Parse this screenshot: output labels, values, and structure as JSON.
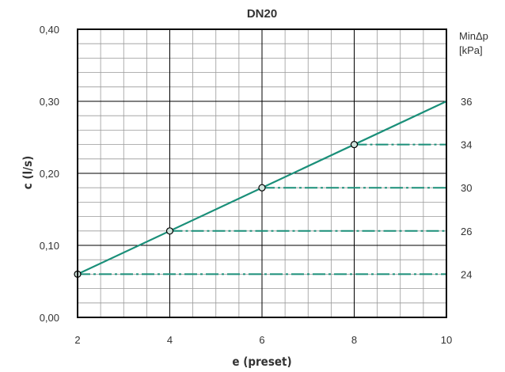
{
  "chart_data": {
    "type": "line",
    "title": "DN20",
    "xlabel": "e (preset)",
    "ylabel": "c (l/s)",
    "xlim": [
      2,
      10
    ],
    "ylim": [
      0,
      0.4
    ],
    "x_ticks": [
      2,
      4,
      6,
      8,
      10
    ],
    "x_tick_labels": [
      "2",
      "4",
      "6",
      "8",
      "10"
    ],
    "y_ticks": [
      0,
      0.1,
      0.2,
      0.3,
      0.4
    ],
    "y_tick_labels": [
      "0,00",
      "0,10",
      "0,20",
      "0,30",
      "0,40"
    ],
    "grid": true,
    "series": [
      {
        "x": [
          2,
          10
        ],
        "y": [
          0.06,
          0.3
        ],
        "color": "#1a8f79"
      }
    ],
    "markers": [
      {
        "x": 2,
        "y": 0.06
      },
      {
        "x": 4,
        "y": 0.12
      },
      {
        "x": 6,
        "y": 0.18
      },
      {
        "x": 8,
        "y": 0.24
      }
    ],
    "min_dp_lines": [
      {
        "y": 0.06,
        "x_start": 2,
        "label": "24"
      },
      {
        "y": 0.12,
        "x_start": 4,
        "label": "26"
      },
      {
        "y": 0.18,
        "x_start": 6,
        "label": "30"
      },
      {
        "y": 0.24,
        "x_start": 8,
        "label": "34"
      }
    ],
    "right_axis": {
      "title_line1": "MinΔp",
      "title_line2": "[kPa]",
      "top_label": {
        "y": 0.3,
        "label": "36"
      }
    },
    "colors": {
      "line": "#1a8f79",
      "marker_fill": "#cfe3dc",
      "grid_major": "#000000",
      "grid_minor": "#999999",
      "text": "#333333"
    }
  }
}
